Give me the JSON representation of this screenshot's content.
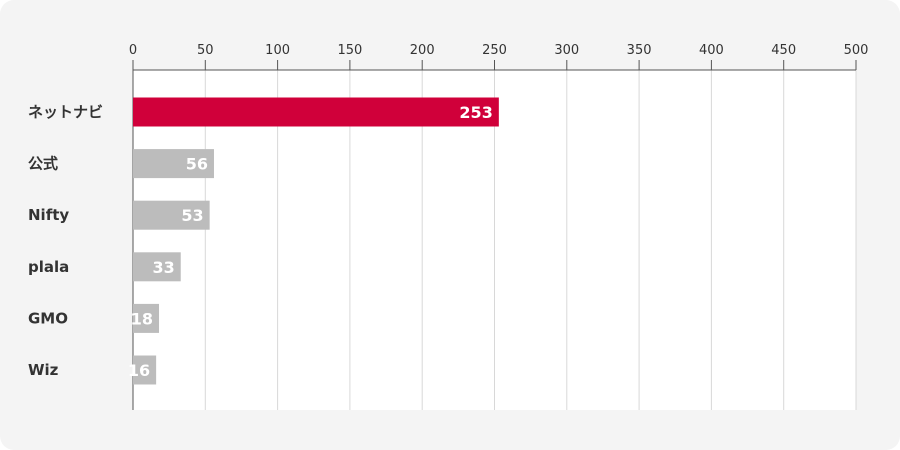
{
  "chart_data": {
    "type": "bar",
    "orientation": "horizontal",
    "categories": [
      "ネットナビ",
      "公式",
      "Nifty",
      "plala",
      "GMO",
      "Wiz"
    ],
    "values": [
      253,
      56,
      53,
      33,
      18,
      16
    ],
    "title": "",
    "xlabel": "",
    "ylabel": "",
    "xlim": [
      0,
      500
    ],
    "ticks": [
      "0",
      "50",
      "100",
      "150",
      "200",
      "250",
      "300",
      "350",
      "400",
      "450",
      "500"
    ],
    "grid": true,
    "legend": "none",
    "highlight_index": 0,
    "colors": {
      "highlight": "#d0003a",
      "default_bar": "#bcbcbc",
      "highlight_label": "#c8002f",
      "label": "#333333",
      "grid": "#d8d8d8",
      "plot_bg": "#ffffff",
      "card_bg": "#f4f4f4",
      "value_text": "#ffffff"
    }
  }
}
